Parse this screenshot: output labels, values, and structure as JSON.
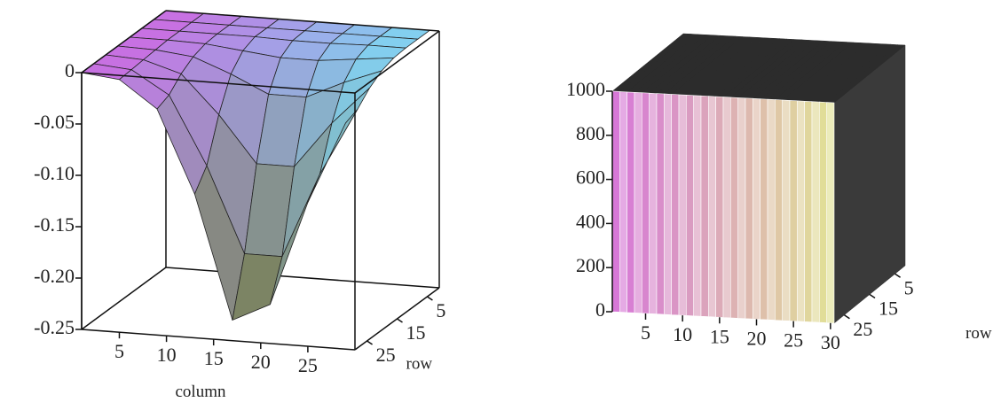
{
  "chart_data": [
    {
      "type": "surface",
      "x_label": "column",
      "y_label": "row",
      "x": [
        1,
        5,
        9,
        13,
        17,
        21,
        25,
        29
      ],
      "y": [
        1,
        5,
        9,
        13,
        17,
        21,
        25,
        29
      ],
      "z": [
        [
          0,
          0,
          0,
          0,
          0,
          0,
          0,
          0
        ],
        [
          0,
          0,
          0,
          0,
          0,
          0,
          0,
          0
        ],
        [
          0,
          0,
          0,
          0,
          -0.001,
          -0.001,
          0,
          0
        ],
        [
          0,
          0,
          -0.001,
          -0.005,
          -0.009,
          -0.009,
          -0.005,
          -0.001
        ],
        [
          0,
          -0.001,
          -0.005,
          -0.019,
          -0.036,
          -0.036,
          -0.019,
          -0.005
        ],
        [
          0,
          -0.002,
          -0.013,
          -0.05,
          -0.095,
          -0.095,
          -0.05,
          -0.013
        ],
        [
          0,
          -0.003,
          -0.025,
          -0.091,
          -0.174,
          -0.174,
          -0.091,
          -0.025
        ],
        [
          0,
          -0.004,
          -0.03,
          -0.11,
          -0.23,
          -0.212,
          -0.11,
          -0.03
        ]
      ],
      "xlim": [
        1,
        30
      ],
      "ylim": [
        1,
        29
      ],
      "zlim": [
        -0.25,
        0
      ],
      "xticks": [
        5,
        10,
        15,
        20,
        25
      ],
      "yticks": [
        5,
        15,
        25
      ],
      "zticks": [
        0,
        -0.05,
        {
          "value": -0.1,
          "label": "-0.10"
        },
        -0.15,
        {
          "value": -0.2,
          "label": "-0.20"
        },
        -0.25
      ]
    },
    {
      "type": "bar3d",
      "y_label": "row",
      "x": [
        1,
        2,
        3,
        4,
        5,
        6,
        7,
        8,
        9,
        10,
        11,
        12,
        13,
        14,
        15,
        16,
        17,
        18,
        19,
        20,
        21,
        22,
        23,
        24,
        25,
        26,
        27,
        28,
        29,
        30
      ],
      "values": [
        1000,
        1000,
        1000,
        1000,
        1000,
        1000,
        1000,
        1000,
        1000,
        1000,
        1000,
        1000,
        1000,
        1000,
        1000,
        1000,
        1000,
        1000,
        1000,
        1000,
        1000,
        1000,
        1000,
        1000,
        1000,
        1000,
        1000,
        1000,
        1000,
        1000
      ],
      "xlim": [
        0.5,
        30.5
      ],
      "ylim": [
        1,
        29
      ],
      "zlim": [
        0,
        1000
      ],
      "xticks": [
        5,
        10,
        15,
        20,
        25,
        30
      ],
      "yticks": [
        5,
        15,
        25
      ],
      "zticks": [
        0,
        200,
        400,
        600,
        800,
        1000
      ]
    }
  ]
}
